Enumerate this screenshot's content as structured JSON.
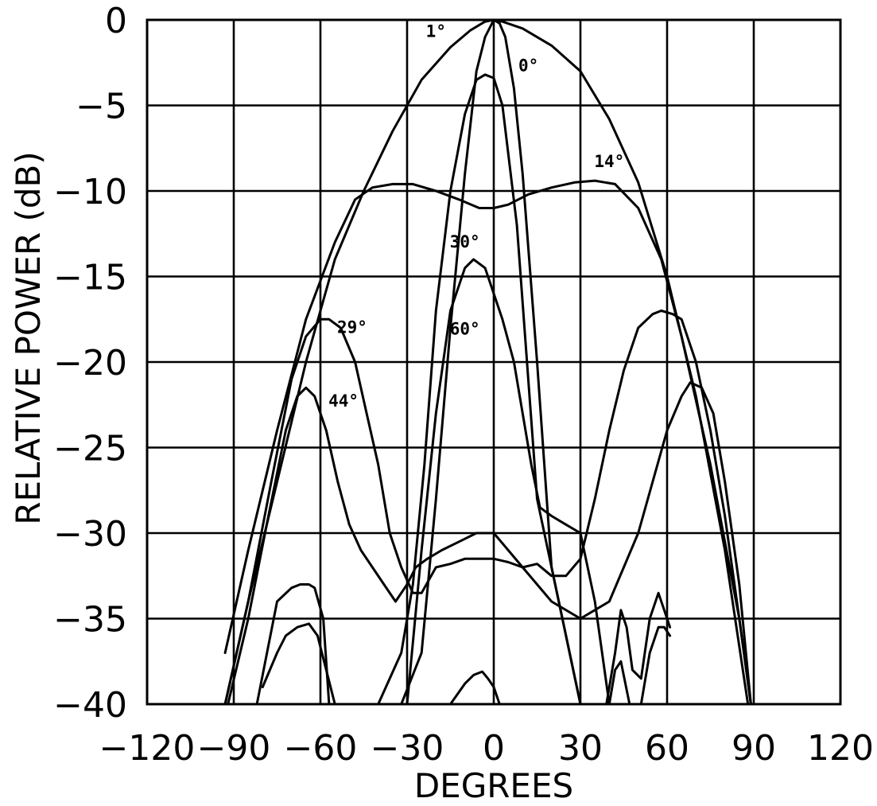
{
  "chart_data": {
    "type": "line",
    "title": "",
    "xlabel": "DEGREES",
    "ylabel": "RELATIVE POWER (dB)",
    "xlim": [
      -120,
      120
    ],
    "ylim": [
      -40,
      0
    ],
    "xticks": [
      -120,
      -90,
      -60,
      -30,
      0,
      30,
      60,
      90,
      120
    ],
    "xtick_labels": [
      "−120",
      "−90",
      "−60",
      "−30",
      "0",
      "30",
      "60",
      "90",
      "120"
    ],
    "yticks": [
      0,
      -5,
      -10,
      -15,
      -20,
      -25,
      -30,
      -35,
      -40
    ],
    "ytick_labels": [
      "0",
      "−5",
      "−10",
      "−15",
      "−20",
      "−25",
      "−30",
      "−35",
      "−40"
    ],
    "grid": true,
    "legend": "none",
    "series": [
      {
        "name": "1°",
        "x": [
          -93,
          -85,
          -75,
          -65,
          -55,
          -45,
          -35,
          -25,
          -15,
          -8,
          -3,
          0,
          3,
          10,
          20,
          30,
          40,
          50,
          60,
          70,
          80,
          88
        ],
        "y": [
          -40,
          -34,
          -27,
          -20,
          -14,
          -10,
          -6.5,
          -3.5,
          -1.6,
          -0.6,
          -0.1,
          0,
          -0.1,
          -0.5,
          -1.5,
          -3,
          -5.8,
          -9.5,
          -15,
          -22,
          -31,
          -40
        ]
      },
      {
        "name": "0°",
        "x": [
          -82,
          -60,
          -45,
          -32,
          -25,
          -20,
          -15,
          -10,
          -6,
          -3,
          0,
          2,
          4,
          7,
          10,
          15,
          20,
          30,
          40,
          50,
          60,
          70,
          80,
          88
        ],
        "y": [
          -40,
          -40,
          -40,
          -40,
          -37,
          -28,
          -18,
          -9,
          -3,
          -1,
          0,
          -0.2,
          -1,
          -4,
          -9,
          -20,
          -32,
          -40,
          -40,
          -40,
          -40,
          -40,
          -40,
          -40
        ]
      },
      {
        "name": "14°",
        "x": [
          -93,
          -85,
          -75,
          -65,
          -55,
          -48,
          -42,
          -35,
          -28,
          -20,
          -12,
          -5,
          0,
          5,
          12,
          20,
          28,
          35,
          42,
          50,
          58,
          65,
          75,
          85,
          89
        ],
        "y": [
          -37,
          -31,
          -24,
          -17.5,
          -13,
          -10.5,
          -9.8,
          -9.6,
          -9.6,
          -10,
          -10.5,
          -11,
          -11,
          -10.8,
          -10.2,
          -9.8,
          -9.5,
          -9.4,
          -9.6,
          -11,
          -14,
          -18.5,
          -26,
          -35,
          -40
        ]
      },
      {
        "name": "29°",
        "x": [
          -93,
          -85,
          -77,
          -70,
          -65,
          -60,
          -57,
          -53,
          -48,
          -44,
          -40,
          -36,
          -32,
          -28,
          -25,
          -20,
          -15,
          -10,
          -5,
          0,
          5,
          10,
          15,
          20,
          25,
          30,
          35,
          40,
          45,
          50,
          55,
          58,
          62,
          65,
          70,
          75,
          80,
          85,
          89
        ],
        "y": [
          -40,
          -34,
          -27,
          -21,
          -18.5,
          -17.5,
          -17.5,
          -18,
          -20,
          -23,
          -26,
          -30,
          -32,
          -33.5,
          -33.5,
          -32,
          -31.8,
          -31.5,
          -31.5,
          -31.5,
          -31.7,
          -32,
          -31.8,
          -32.5,
          -32.5,
          -31.5,
          -28,
          -24,
          -20.5,
          -18,
          -17.2,
          -17,
          -17.2,
          -17.5,
          -20,
          -24,
          -29,
          -35,
          -40
        ]
      },
      {
        "name": "30°",
        "x": [
          -30,
          -25,
          -20,
          -15,
          -10,
          -7,
          -3,
          0,
          3,
          7,
          10,
          13,
          16,
          20,
          25,
          30,
          35,
          40
        ],
        "y": [
          -40,
          -31,
          -23,
          -17,
          -14.5,
          -14,
          -14.5,
          -16,
          -17.5,
          -20,
          -23,
          -26,
          -28.5,
          -29,
          -29.5,
          -30,
          -34,
          -40
        ]
      },
      {
        "name": "44°",
        "x": [
          -92,
          -85,
          -78,
          -72,
          -68,
          -65,
          -62,
          -58,
          -54,
          -50,
          -46,
          -42,
          -38,
          -34,
          -30,
          -27,
          -23,
          -18,
          -12,
          -6,
          0,
          5,
          10,
          20,
          30,
          40,
          50,
          60,
          65,
          68,
          72,
          76,
          80,
          85,
          89
        ],
        "y": [
          -40,
          -35,
          -29,
          -24,
          -22,
          -21.5,
          -22,
          -24,
          -27,
          -29.5,
          -31,
          -32,
          -33,
          -34,
          -33,
          -32,
          -31.5,
          -31,
          -30.5,
          -30,
          -30,
          -31,
          -32,
          -34,
          -35,
          -34,
          -30,
          -24,
          -22,
          -21.2,
          -21.5,
          -23,
          -27,
          -33,
          -40
        ]
      },
      {
        "name": "60°",
        "x": [
          -50,
          -40,
          -32,
          -28,
          -24,
          -20,
          -15,
          -10,
          -6,
          -3,
          0,
          3,
          8,
          15,
          20,
          30,
          40,
          50,
          60,
          70,
          80,
          88
        ],
        "y": [
          -40,
          -40,
          -37,
          -33,
          -26,
          -17,
          -10,
          -5.5,
          -3.5,
          -3.2,
          -3.4,
          -5,
          -12,
          -28,
          -32,
          -40,
          -40,
          -40,
          -40,
          -40,
          -40,
          -40
        ]
      },
      {
        "name": "",
        "x": [
          -82,
          -75,
          -70,
          -67,
          -64,
          -62,
          -59,
          -57
        ],
        "y": [
          -40,
          -34,
          -33.2,
          -33,
          -33,
          -33.2,
          -35,
          -40
        ]
      },
      {
        "name": "",
        "x": [
          -80,
          -75,
          -72,
          -68,
          -64,
          -61,
          -58,
          -55
        ],
        "y": [
          -39,
          -37,
          -36,
          -35.5,
          -35.3,
          -36,
          -38,
          -40
        ]
      },
      {
        "name": "",
        "x": [
          -15,
          -10,
          -7,
          -4,
          -2,
          0,
          2,
          5,
          10,
          20
        ],
        "y": [
          -40,
          -38.8,
          -38.3,
          -38.1,
          -38.5,
          -39,
          -40,
          -40,
          -40,
          -40
        ]
      },
      {
        "name": "",
        "x": [
          39,
          42,
          44,
          46,
          48,
          51,
          54,
          57,
          59,
          61
        ],
        "y": [
          -40,
          -37,
          -34.5,
          -35.5,
          -38,
          -38.5,
          -35,
          -33.5,
          -34.5,
          -35.5
        ]
      },
      {
        "name": "",
        "x": [
          40,
          42,
          44,
          47,
          51,
          54,
          57,
          59,
          61
        ],
        "y": [
          -40,
          -38,
          -37.5,
          -40,
          -40,
          -37,
          -35.5,
          -35.5,
          -36
        ]
      }
    ],
    "annotations": [
      {
        "text": "1°",
        "x": -20,
        "y": -1.0,
        "series": "1°"
      },
      {
        "text": "0°",
        "x": 12,
        "y": -3.0,
        "series": "0°"
      },
      {
        "text": "14°",
        "x": 40,
        "y": -8.6,
        "series": "14°"
      },
      {
        "text": "30°",
        "x": -10,
        "y": -13.3,
        "series": "30°"
      },
      {
        "text": "29°",
        "x": -49,
        "y": -18.3,
        "series": "29°"
      },
      {
        "text": "60°",
        "x": -10,
        "y": -18.4,
        "series": "60°"
      },
      {
        "text": "44°",
        "x": -52,
        "y": -22.6,
        "series": "44°"
      }
    ]
  }
}
